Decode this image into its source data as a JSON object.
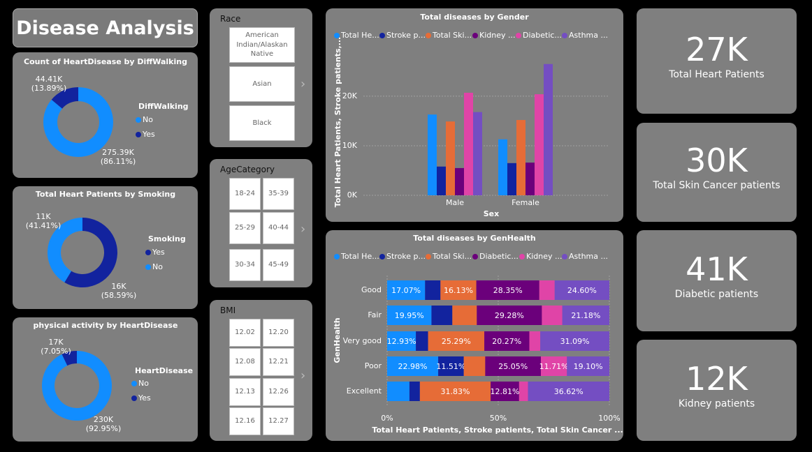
{
  "title": "Disease Analysis",
  "slicers": [
    {
      "title": "Race",
      "items": [
        "American Indian/Alaskan Native",
        "Asian",
        "Black"
      ]
    },
    {
      "title": "AgeCategory",
      "items": [
        "18-24",
        "35-39",
        "25-29",
        "40-44",
        "30-34",
        "45-49"
      ]
    },
    {
      "title": "BMI",
      "items": [
        "12.02",
        "12.20",
        "12.08",
        "12.21",
        "12.13",
        "12.26",
        "12.16",
        "12.27"
      ]
    }
  ],
  "kpis": [
    {
      "value": "27K",
      "label": "Total Heart Patients"
    },
    {
      "value": "30K",
      "label": "Total Skin Cancer patients"
    },
    {
      "value": "41K",
      "label": "Diabetic patients"
    },
    {
      "value": "12K",
      "label": "Kidney patients"
    }
  ],
  "chart_data": [
    {
      "type": "donut",
      "title": "Count of HeartDisease by DiffWalking",
      "legend_title": "DiffWalking",
      "categories": [
        "No",
        "Yes"
      ],
      "values": [
        275390,
        44410
      ],
      "value_labels": [
        "275.39K",
        "44.41K"
      ],
      "percent_labels": [
        "(86.11%)",
        "(13.89%)"
      ],
      "colors": [
        "#118DFF",
        "#12239E"
      ]
    },
    {
      "type": "donut",
      "title": "Total Heart Patients by Smoking",
      "legend_title": "Smoking",
      "categories": [
        "Yes",
        "No"
      ],
      "values": [
        16040,
        11330
      ],
      "value_labels": [
        "16K",
        "11K"
      ],
      "percent_labels": [
        "(58.59%)",
        "(41.41%)"
      ],
      "colors": [
        "#12239E",
        "#118DFF"
      ]
    },
    {
      "type": "donut",
      "title": "physical activity by HeartDisease",
      "legend_title": "HeartDisease",
      "categories": [
        "No",
        "Yes"
      ],
      "values": [
        229960,
        17440
      ],
      "value_labels": [
        "230K",
        "17K"
      ],
      "percent_labels": [
        "(92.95%)",
        "(7.05%)"
      ],
      "colors": [
        "#118DFF",
        "#12239E"
      ]
    },
    {
      "type": "bar",
      "title": "Total diseases by Gender",
      "x_label": "Sex",
      "y_label": "Total Heart Patients, Stroke patients,...",
      "categories": [
        "Male",
        "Female"
      ],
      "series": [
        {
          "name": "Total He...",
          "color": "#118DFF",
          "values": [
            16300,
            11300
          ]
        },
        {
          "name": "Stroke p...",
          "color": "#12239E",
          "values": [
            5800,
            6500
          ]
        },
        {
          "name": "Total Ski...",
          "color": "#E66C37",
          "values": [
            14900,
            15200
          ]
        },
        {
          "name": "Kidney ...",
          "color": "#6B007B",
          "values": [
            5500,
            6600
          ]
        },
        {
          "name": "Diabetic...",
          "color": "#E044A7",
          "values": [
            20700,
            20400
          ]
        },
        {
          "name": "Asthma ...",
          "color": "#744EC2",
          "values": [
            16800,
            26500
          ]
        }
      ],
      "ylim": [
        0,
        29000
      ],
      "yticks": [
        {
          "value": 0,
          "label": "0K"
        },
        {
          "value": 10000,
          "label": "10K"
        },
        {
          "value": 20000,
          "label": "20K"
        }
      ],
      "grid": true
    },
    {
      "type": "stacked_bar_100",
      "title": "Total diseases by GenHealth",
      "y_label": "GenHealth",
      "x_label": "Total Heart Patients, Stroke patients, Total Skin Cancer ...",
      "categories": [
        "Good",
        "Fair",
        "Very good",
        "Poor",
        "Excellent"
      ],
      "series": [
        {
          "name": "Total He...",
          "color": "#118DFF",
          "values": [
            17.07,
            19.95,
            12.93,
            22.98,
            10.04
          ],
          "value_labels": [
            "17.07%",
            "19.95%",
            "12.93%",
            "22.98%",
            null
          ]
        },
        {
          "name": "Stroke p...",
          "color": "#12239E",
          "values": [
            6.93,
            9.4,
            5.5,
            11.51,
            4.7
          ],
          "value_labels": [
            null,
            null,
            null,
            "11.51%",
            null
          ]
        },
        {
          "name": "Total Ski...",
          "color": "#E66C37",
          "values": [
            16.13,
            11.0,
            25.29,
            9.65,
            31.83
          ],
          "value_labels": [
            "16.13%",
            null,
            "25.29%",
            null,
            "31.83%"
          ]
        },
        {
          "name": "Diabetic...",
          "color": "#6B007B",
          "values": [
            28.35,
            29.28,
            20.27,
            25.05,
            12.81
          ],
          "value_labels": [
            "28.35%",
            "29.28%",
            "20.27%",
            "25.05%",
            "12.81%"
          ]
        },
        {
          "name": "Kidney ...",
          "color": "#E044A7",
          "values": [
            6.92,
            9.19,
            4.92,
            11.71,
            4.0
          ],
          "value_labels": [
            null,
            null,
            null,
            "11.71%",
            null
          ]
        },
        {
          "name": "Asthma ...",
          "color": "#744EC2",
          "values": [
            24.6,
            21.18,
            31.09,
            19.1,
            36.62
          ],
          "value_labels": [
            "24.60%",
            "21.18%",
            "31.09%",
            "19.10%",
            "36.62%"
          ]
        }
      ],
      "xlim": [
        0,
        100
      ],
      "xticks": [
        {
          "value": 0,
          "label": "0%"
        },
        {
          "value": 50,
          "label": "50%"
        },
        {
          "value": 100,
          "label": "100%"
        }
      ],
      "grid": true
    }
  ]
}
